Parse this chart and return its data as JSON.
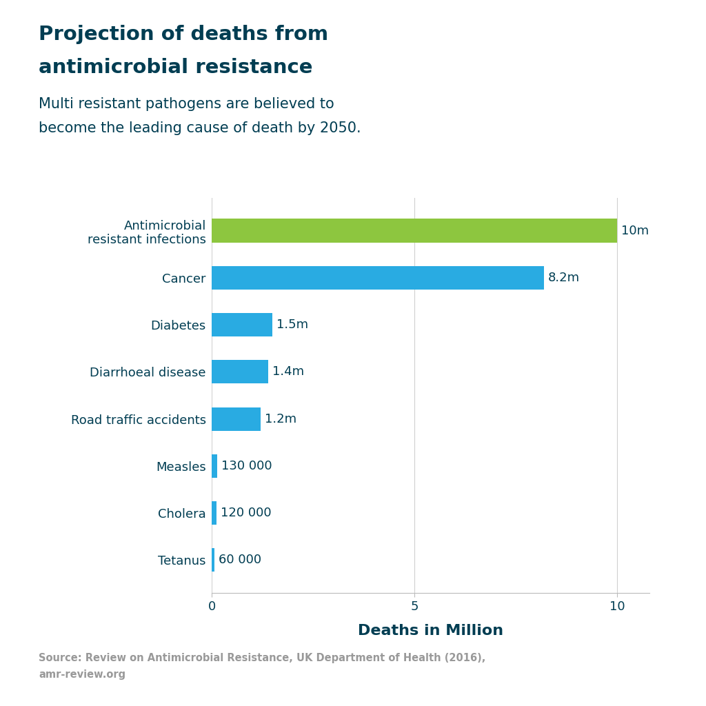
{
  "title_line1": "Projection of deaths from",
  "title_line2": "antimicrobial resistance",
  "subtitle_line1": "Multi resistant pathogens are believed to",
  "subtitle_line2": "become the leading cause of death by 2050.",
  "source": "Source: Review on Antimicrobial Resistance, UK Department of Health (2016),\namr-review.org",
  "categories": [
    "Antimicrobial\nresistant infections",
    "Cancer",
    "Diabetes",
    "Diarrhoeal disease",
    "Road traffic accidents",
    "Measles",
    "Cholera",
    "Tetanus"
  ],
  "values": [
    10.0,
    8.2,
    1.5,
    1.4,
    1.2,
    0.13,
    0.12,
    0.06
  ],
  "labels": [
    "10m",
    "8.2m",
    "1.5m",
    "1.4m",
    "1.2m",
    "130 000",
    "120 000",
    "60 000"
  ],
  "bar_colors": [
    "#8dc63f",
    "#29abe2",
    "#29abe2",
    "#29abe2",
    "#29abe2",
    "#29abe2",
    "#29abe2",
    "#29abe2"
  ],
  "title_color": "#003d52",
  "subtitle_color": "#003d52",
  "label_color": "#003d52",
  "axis_label_color": "#003d52",
  "source_color": "#999999",
  "background_color": "#ffffff",
  "grid_color": "#d0d0d0",
  "xlim": [
    0,
    10.8
  ],
  "xticks": [
    0,
    5,
    10
  ],
  "xlabel": "Deaths in Million",
  "bar_height": 0.5
}
